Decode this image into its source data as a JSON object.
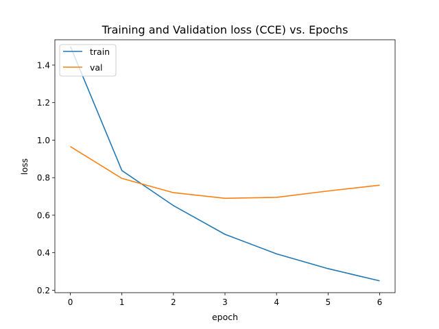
{
  "chart_data": {
    "type": "line",
    "title": "Training and Validation loss (CCE) vs. Epochs",
    "xlabel": "epoch",
    "ylabel": "loss",
    "xlim": [
      -0.3,
      6.3
    ],
    "ylim": [
      0.187,
      1.535
    ],
    "xticks": [
      "0",
      "1",
      "2",
      "3",
      "4",
      "5",
      "6"
    ],
    "yticks": [
      "0.2",
      "0.4",
      "0.6",
      "0.8",
      "1.0",
      "1.2",
      "1.4"
    ],
    "grid": false,
    "legend_position": "top-left",
    "x": [
      0,
      1,
      2,
      3,
      4,
      5,
      6
    ],
    "series": [
      {
        "name": "train",
        "color": "#1f77b4",
        "values": [
          1.5,
          0.838,
          0.651,
          0.498,
          0.394,
          0.315,
          0.25
        ]
      },
      {
        "name": "val",
        "color": "#ff7f0e",
        "values": [
          0.966,
          0.796,
          0.72,
          0.69,
          0.695,
          0.729,
          0.76
        ]
      }
    ]
  }
}
